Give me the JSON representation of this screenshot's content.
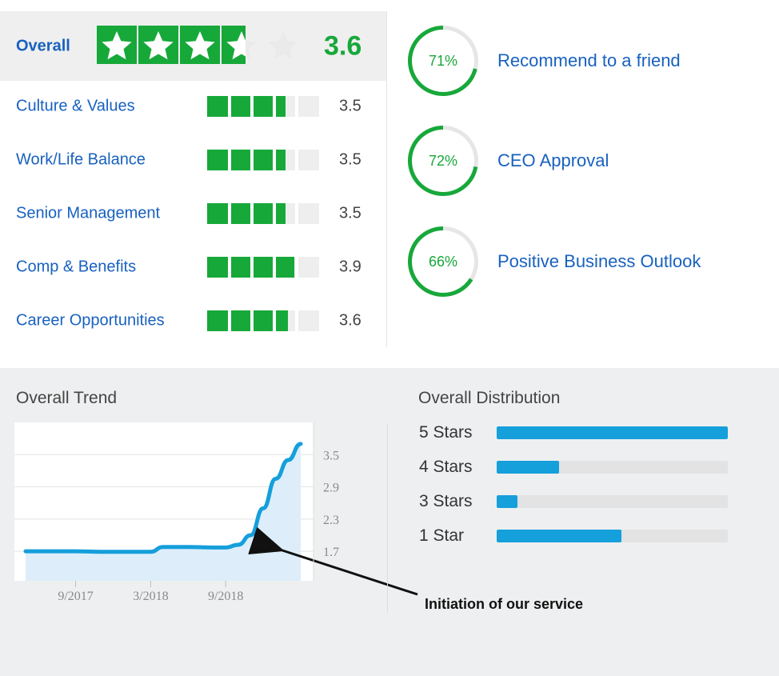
{
  "overall": {
    "label": "Overall",
    "score": "3.6",
    "rating": 3.6,
    "max_stars": 5,
    "colors": {
      "star_bg": "#17a83a",
      "empty_star": "#ffffff"
    }
  },
  "categories": [
    {
      "label": "Culture & Values",
      "value": "3.5",
      "rating": 3.5
    },
    {
      "label": "Work/Life Balance",
      "value": "3.5",
      "rating": 3.5
    },
    {
      "label": "Senior Management",
      "value": "3.5",
      "rating": 3.5
    },
    {
      "label": "Comp & Benefits",
      "value": "3.9",
      "rating": 3.9
    },
    {
      "label": "Career Opportunities",
      "value": "3.6",
      "rating": 3.6
    }
  ],
  "metrics": [
    {
      "percent": "71%",
      "fraction": 0.71,
      "label": "Recommend to a friend"
    },
    {
      "percent": "72%",
      "fraction": 0.72,
      "label": "CEO Approval"
    },
    {
      "percent": "66%",
      "fraction": 0.66,
      "label": "Positive Business Outlook"
    }
  ],
  "trend": {
    "title": "Overall Trend",
    "annotation": "Initiation of our service"
  },
  "distribution": {
    "title": "Overall Distribution",
    "rows": [
      {
        "label": "5 Stars",
        "fraction": 1.0
      },
      {
        "label": "4 Stars",
        "fraction": 0.27
      },
      {
        "label": "3 Stars",
        "fraction": 0.09
      },
      {
        "label": "1 Star",
        "fraction": 0.54
      }
    ]
  },
  "chart_data": {
    "type": "area",
    "title": "Overall Trend",
    "xlabel": "",
    "ylabel": "",
    "x_ticks": [
      "9/2017",
      "3/2018",
      "9/2018"
    ],
    "y_ticks": [
      1.7,
      2.3,
      2.9,
      3.5
    ],
    "ylim": [
      1.15,
      4.1
    ],
    "x": [
      "5/2017",
      "7/2017",
      "9/2017",
      "11/2017",
      "1/2018",
      "3/2018",
      "4/2018",
      "6/2018",
      "8/2018",
      "9/2018",
      "10/2018",
      "11/2018",
      "12/2018",
      "1/2019",
      "2/2019",
      "3/2019"
    ],
    "series": [
      {
        "values": [
          1.7,
          1.7,
          1.7,
          1.69,
          1.69,
          1.69,
          1.78,
          1.78,
          1.77,
          1.77,
          1.82,
          2.0,
          2.5,
          3.05,
          3.4,
          3.7
        ]
      }
    ],
    "grid": true,
    "colors": {
      "line": "#159fdb",
      "fill": "#ddeefa"
    }
  }
}
